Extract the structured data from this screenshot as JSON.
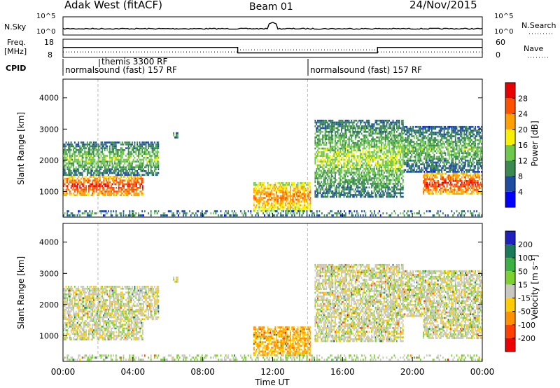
{
  "header": {
    "radar": "Adak West (fitACF)",
    "beam": "Beam 01",
    "date": "24/Nov/2015"
  },
  "noise_panel": {
    "left_label": "N.Sky",
    "right_label": "N.Search",
    "left_ticks": [
      "10^5",
      "10^0"
    ],
    "right_ticks": [
      "10^5",
      "10^0"
    ]
  },
  "freq_panel": {
    "left_label_1": "Freq.",
    "left_label_2": "[MHz]",
    "right_label": "Nave",
    "left_ticks": [
      "18",
      "8"
    ],
    "right_ticks": [
      "60",
      "0"
    ]
  },
  "cpid": {
    "label": "CPID",
    "segments": [
      {
        "start": 0,
        "text": "normalsound (fast) 157 RF"
      },
      {
        "start": 14,
        "text": "normalsound (fast) 157 RF"
      }
    ],
    "special": {
      "start": 2,
      "text": "themis 3300 RF"
    }
  },
  "power_panel": {
    "ylabel": "Slant Range [km]",
    "yticks": [
      "1000",
      "2000",
      "3000",
      "4000"
    ],
    "colorbar_label": "Power [dB]",
    "colorbar_ticks": [
      "4",
      "8",
      "12",
      "16",
      "20",
      "24",
      "28"
    ],
    "colors": [
      "#0000ff",
      "#1e4da0",
      "#3a8a50",
      "#6ec84e",
      "#f7f000",
      "#ffa000",
      "#ff5000",
      "#e80000"
    ]
  },
  "velocity_panel": {
    "ylabel": "Slant Range [km]",
    "yticks": [
      "1000",
      "2000",
      "3000",
      "4000"
    ],
    "colorbar_label": "Velocity [m s⁻¹]",
    "colorbar_ticks": [
      "200",
      "100",
      "50",
      "15",
      "-15",
      "-50",
      "-100",
      "-200"
    ],
    "colors": [
      "#2020c0",
      "#1a7a5a",
      "#3cb043",
      "#7cd030",
      "#c8c8c0",
      "#ffcc00",
      "#ff9000",
      "#ff4000",
      "#ee0000"
    ]
  },
  "xaxis": {
    "label": "Time UT",
    "ticks": [
      "00:00",
      "04:00",
      "08:00",
      "12:00",
      "16:00",
      "20:00",
      "00:00"
    ]
  },
  "chart_data": {
    "type": "heatmap",
    "title": "Adak West (fitACF)  Beam 01  24/Nov/2015",
    "xlabel": "Time UT",
    "ylabel": "Slant Range [km]",
    "xlim": [
      0,
      24
    ],
    "ylim": [
      180,
      4600
    ],
    "cpid_change_hours": [
      2,
      14
    ],
    "freq_mhz": [
      {
        "t0": 0,
        "t1": 10,
        "value": 13.5
      },
      {
        "t0": 10,
        "t1": 18,
        "value": 10.5
      },
      {
        "t0": 18,
        "t1": 24,
        "value": 13.5
      }
    ],
    "nave": [
      {
        "t0": 0,
        "t1": 10,
        "value": 18
      },
      {
        "t0": 10,
        "t1": 18,
        "value": 25
      },
      {
        "t0": 18,
        "t1": 24,
        "value": 18
      }
    ],
    "echo_regions": [
      {
        "name": "band-1200km",
        "t0": 0,
        "t1": 4.6,
        "r0": 850,
        "r1": 1500,
        "power_db": 24,
        "velocity_ms": 0
      },
      {
        "name": "upper-scatter-early",
        "t0": 0,
        "t1": 5.5,
        "r0": 1500,
        "r1": 2600,
        "power_db": 11,
        "velocity_ms": 0
      },
      {
        "name": "patch-3000km",
        "t0": 6.3,
        "t1": 6.6,
        "r0": 2700,
        "r1": 2900,
        "power_db": 8,
        "velocity_ms": 0
      },
      {
        "name": "evening-near-range",
        "t0": 10.9,
        "t1": 14.2,
        "r0": 350,
        "r1": 1300,
        "power_db": 20,
        "velocity_ms": -50
      },
      {
        "name": "evening-ripples",
        "t0": 14.4,
        "t1": 19.5,
        "r0": 800,
        "r1": 3300,
        "power_db": 12,
        "velocity_ms": 0
      },
      {
        "name": "band-1200km-late",
        "t0": 20.6,
        "t1": 24,
        "r0": 900,
        "r1": 1600,
        "power_db": 24,
        "velocity_ms": 0
      },
      {
        "name": "upper-scatter-late",
        "t0": 19.5,
        "t1": 24,
        "r0": 1600,
        "r1": 3100,
        "power_db": 10,
        "velocity_ms": 0
      },
      {
        "name": "ground-near",
        "t0": 0,
        "t1": 24,
        "r0": 200,
        "r1": 400,
        "power_db": 8,
        "velocity_ms": 15
      }
    ]
  }
}
